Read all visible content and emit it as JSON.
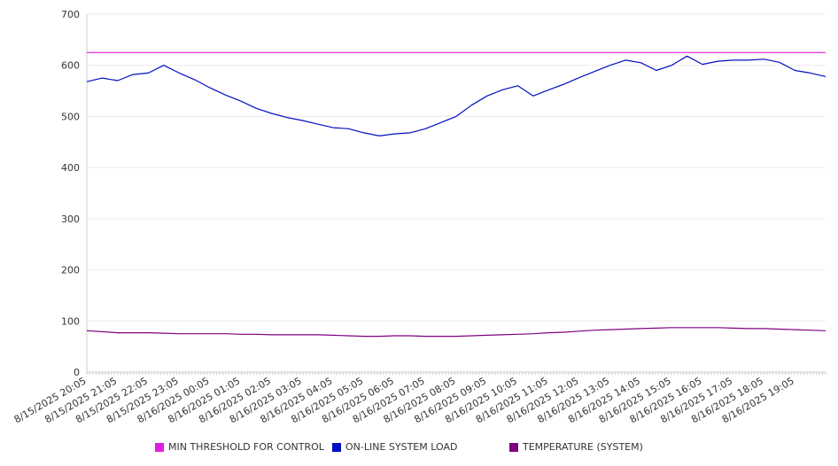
{
  "chart_data": {
    "type": "line",
    "title": "",
    "xlabel": "",
    "ylabel": "",
    "ylim": [
      0,
      700
    ],
    "yticks": [
      0,
      100,
      200,
      300,
      400,
      500,
      600,
      700
    ],
    "grid": true,
    "legend_position": "bottom",
    "x_tick_labels": [
      "8/15/2025 20:05",
      "8/15/2025 21:05",
      "8/15/2025 22:05",
      "8/15/2025 23:05",
      "8/16/2025 00:05",
      "8/16/2025 01:05",
      "8/16/2025 02:05",
      "8/16/2025 03:05",
      "8/16/2025 04:05",
      "8/16/2025 05:05",
      "8/16/2025 06:05",
      "8/16/2025 07:05",
      "8/16/2025 08:05",
      "8/16/2025 09:05",
      "8/16/2025 10:05",
      "8/16/2025 11:05",
      "8/16/2025 12:05",
      "8/16/2025 13:05",
      "8/16/2025 14:05",
      "8/16/2025 15:05",
      "8/16/2025 16:05",
      "8/16/2025 17:05",
      "8/16/2025 18:05",
      "8/16/2025 19:05"
    ],
    "x": [
      "8/15/2025 20:05",
      "8/15/2025 20:35",
      "8/15/2025 21:05",
      "8/15/2025 21:35",
      "8/15/2025 22:05",
      "8/15/2025 22:35",
      "8/15/2025 23:05",
      "8/15/2025 23:35",
      "8/16/2025 00:05",
      "8/16/2025 00:35",
      "8/16/2025 01:05",
      "8/16/2025 01:35",
      "8/16/2025 02:05",
      "8/16/2025 02:35",
      "8/16/2025 03:05",
      "8/16/2025 03:35",
      "8/16/2025 04:05",
      "8/16/2025 04:35",
      "8/16/2025 05:05",
      "8/16/2025 05:35",
      "8/16/2025 06:05",
      "8/16/2025 06:35",
      "8/16/2025 07:05",
      "8/16/2025 07:35",
      "8/16/2025 08:05",
      "8/16/2025 08:35",
      "8/16/2025 09:05",
      "8/16/2025 09:35",
      "8/16/2025 10:05",
      "8/16/2025 10:35",
      "8/16/2025 11:05",
      "8/16/2025 11:35",
      "8/16/2025 12:05",
      "8/16/2025 12:35",
      "8/16/2025 13:05",
      "8/16/2025 13:35",
      "8/16/2025 14:05",
      "8/16/2025 14:35",
      "8/16/2025 15:05",
      "8/16/2025 15:35",
      "8/16/2025 16:05",
      "8/16/2025 16:35",
      "8/16/2025 17:05",
      "8/16/2025 17:35",
      "8/16/2025 18:05",
      "8/16/2025 18:35",
      "8/16/2025 19:05",
      "8/16/2025 19:35",
      "8/16/2025 20:00"
    ],
    "series": [
      {
        "name": "MIN THRESHOLD FOR CONTROL",
        "color": "#e020e0",
        "values": [
          625,
          625,
          625,
          625,
          625,
          625,
          625,
          625,
          625,
          625,
          625,
          625,
          625,
          625,
          625,
          625,
          625,
          625,
          625,
          625,
          625,
          625,
          625,
          625,
          625,
          625,
          625,
          625,
          625,
          625,
          625,
          625,
          625,
          625,
          625,
          625,
          625,
          625,
          625,
          625,
          625,
          625,
          625,
          625,
          625,
          625,
          625,
          625,
          625
        ]
      },
      {
        "name": "ON-LINE SYSTEM LOAD",
        "color": "#0010c0",
        "values": [
          568,
          575,
          570,
          582,
          585,
          600,
          585,
          572,
          556,
          542,
          530,
          516,
          506,
          498,
          492,
          485,
          478,
          476,
          468,
          462,
          466,
          468,
          476,
          488,
          500,
          522,
          540,
          552,
          560,
          540,
          552,
          563,
          576,
          588,
          600,
          610,
          605,
          590,
          600,
          618,
          602,
          608,
          610,
          610,
          612,
          606,
          590,
          585,
          578
        ]
      },
      {
        "name": "TEMPERATURE (SYSTEM)",
        "color": "#800080",
        "values": [
          81,
          79,
          77,
          77,
          77,
          76,
          75,
          75,
          75,
          75,
          74,
          74,
          73,
          73,
          73,
          73,
          72,
          71,
          70,
          70,
          71,
          71,
          70,
          70,
          70,
          71,
          72,
          73,
          74,
          75,
          77,
          78,
          80,
          82,
          83,
          84,
          85,
          86,
          87,
          87,
          87,
          87,
          86,
          85,
          85,
          84,
          83,
          82,
          81
        ]
      }
    ]
  }
}
